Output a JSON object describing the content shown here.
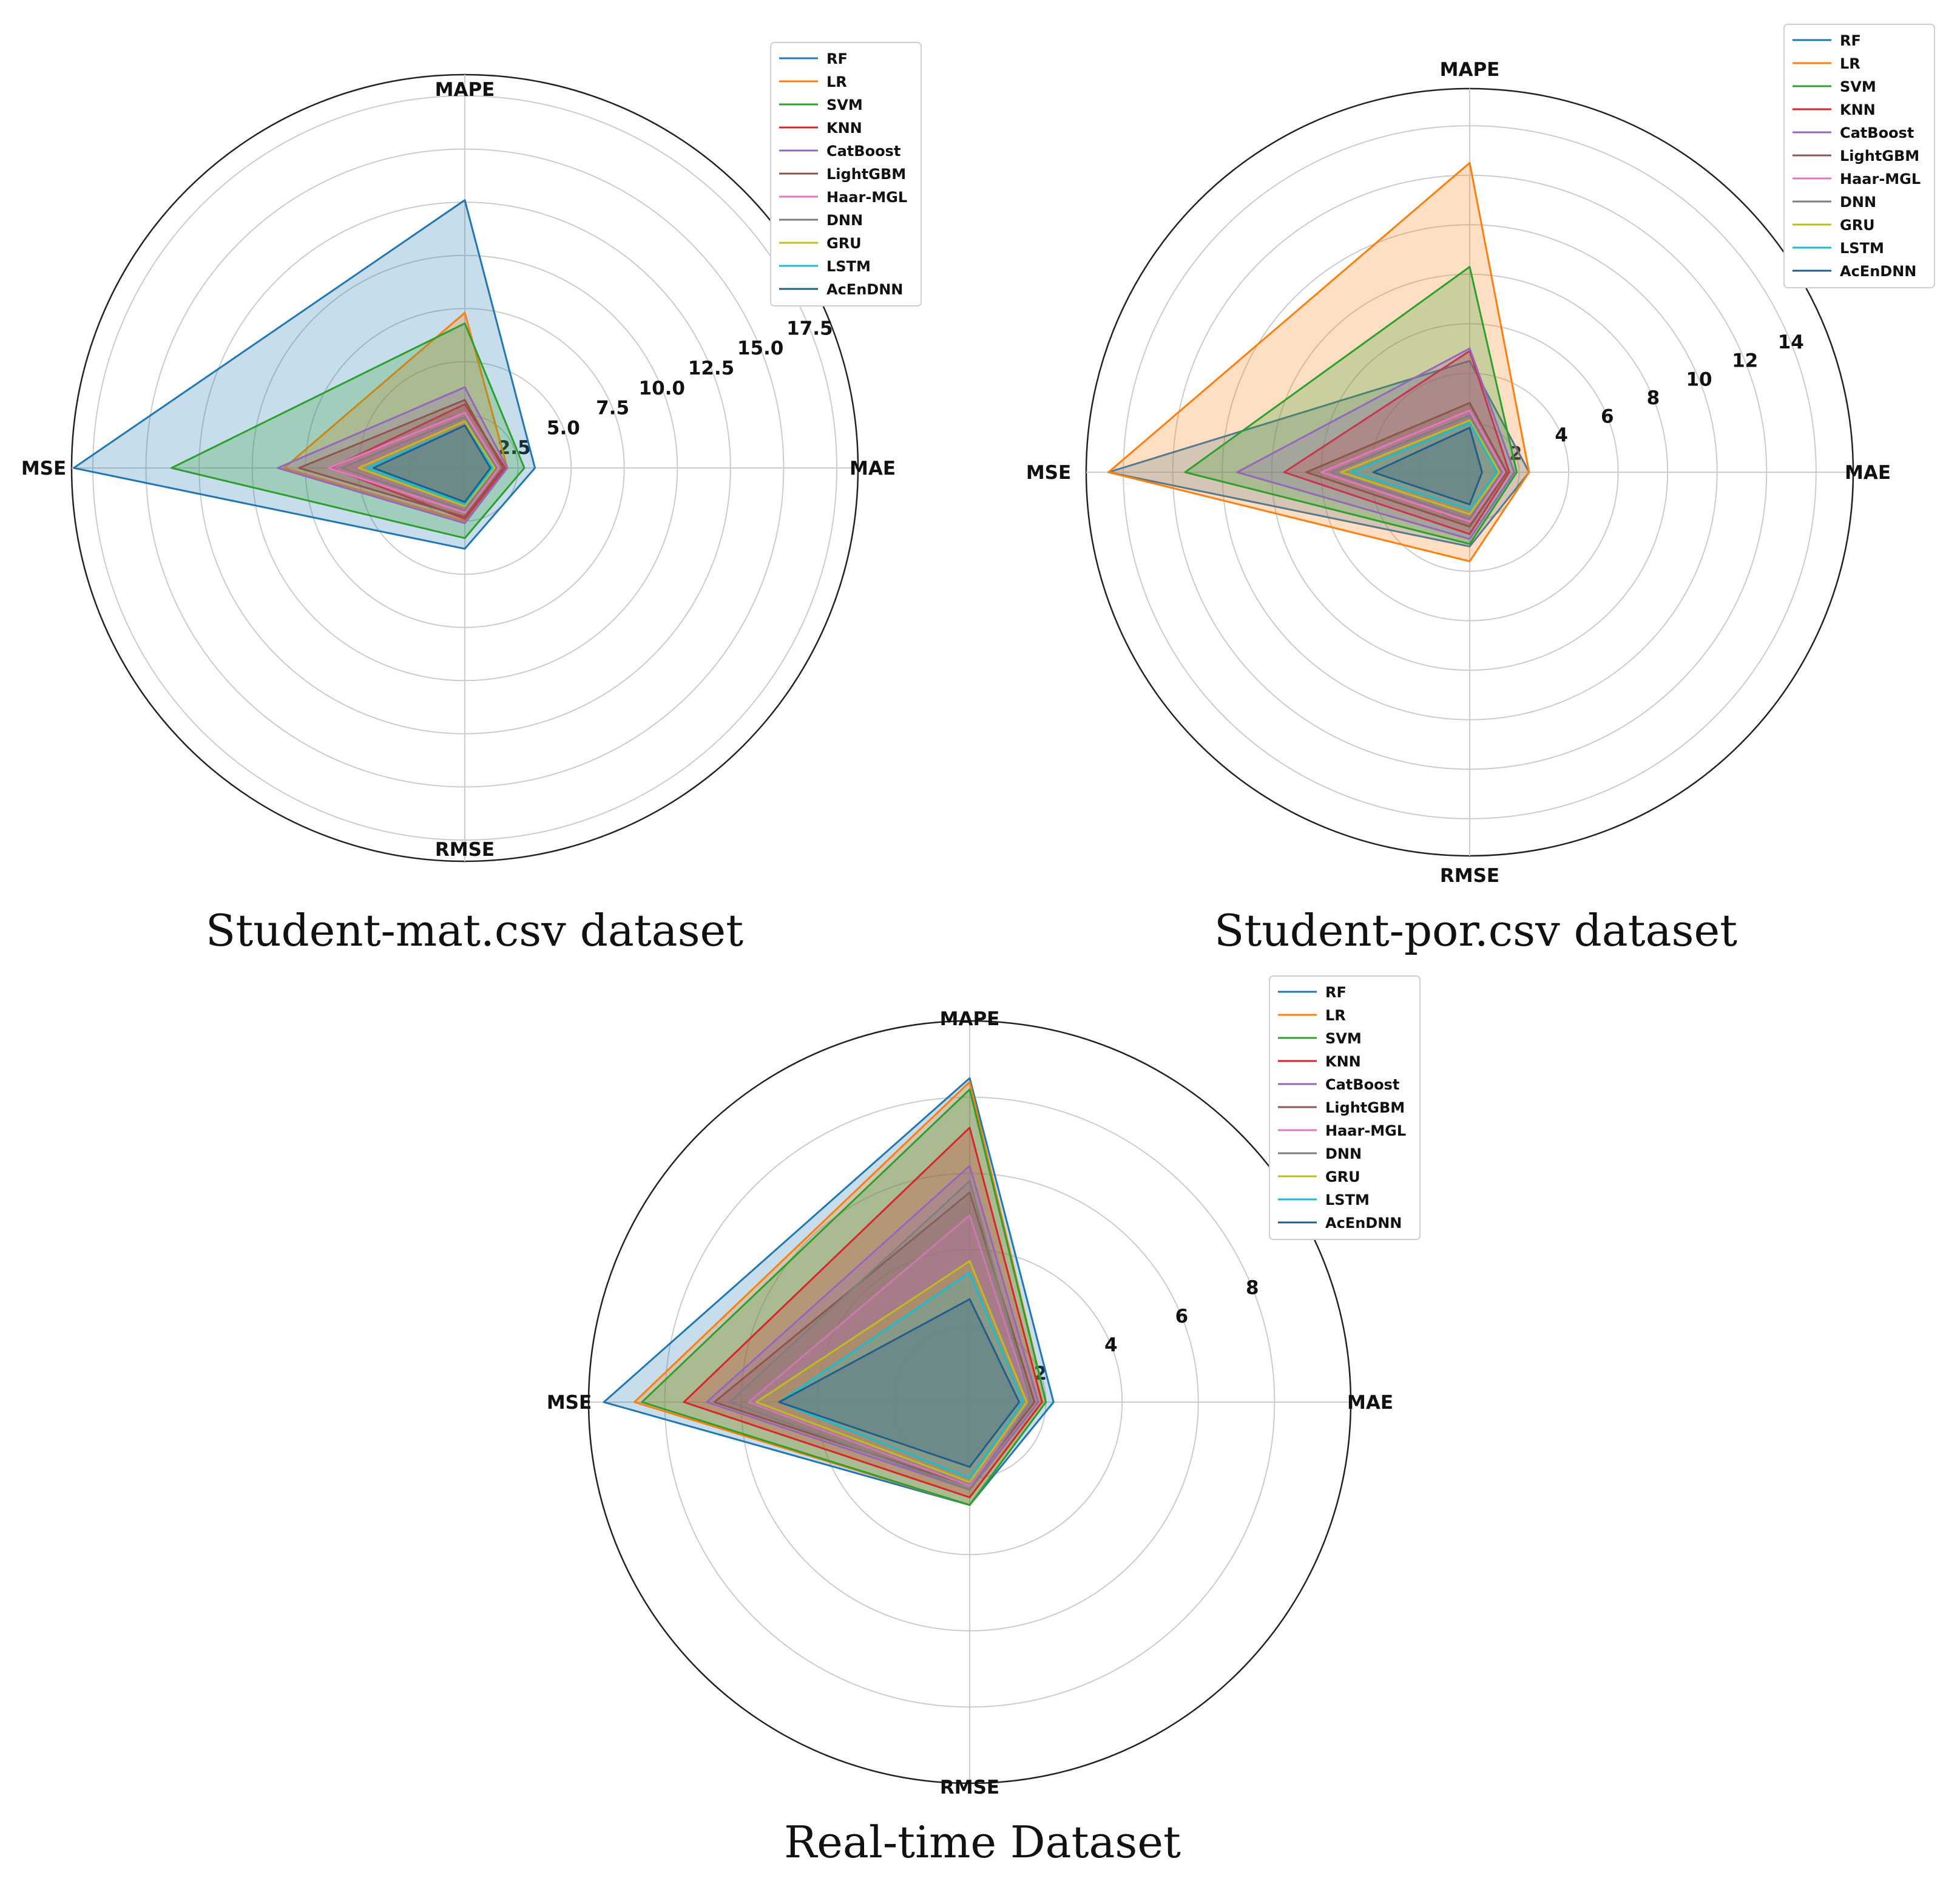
{
  "colors": {
    "RF": "#1f77b4",
    "LR": "#ff7f0e",
    "SVM": "#2ca02c",
    "KNN": "#d62728",
    "CatBoost": "#9467bd",
    "LightGBM": "#8c564b",
    "Haar-MGL": "#e377c2",
    "DNN": "#7f7f7f",
    "GRU": "#bcbd22",
    "LSTM": "#17becf",
    "AcEnDNN": "#1f5f8b"
  },
  "chart_data": [
    {
      "type": "radar",
      "title": "Student-mat.csv dataset",
      "axes": [
        "MAE",
        "MAPE",
        "MSE",
        "RMSE"
      ],
      "rmax": 18.5,
      "ticks": [
        2.5,
        5.0,
        7.5,
        10.0,
        12.5,
        15.0,
        17.5
      ],
      "tick_labels": [
        "2.5",
        "5.0",
        "7.5",
        "10.0",
        "12.5",
        "15.0",
        "17.5"
      ],
      "legend": [
        "RF",
        "LR",
        "SVM",
        "KNN",
        "CatBoost",
        "LightGBM",
        "Haar-MGL",
        "DNN",
        "GRU",
        "LSTM",
        "AcEnDNN"
      ],
      "series": [
        {
          "name": "RF",
          "values": [
            3.3,
            12.6,
            18.4,
            3.8
          ]
        },
        {
          "name": "LR",
          "values": [
            2.0,
            7.3,
            8.5,
            2.5
          ]
        },
        {
          "name": "SVM",
          "values": [
            2.8,
            6.8,
            13.8,
            3.3
          ]
        },
        {
          "name": "KNN",
          "values": [
            1.9,
            3.0,
            6.3,
            2.4
          ]
        },
        {
          "name": "CatBoost",
          "values": [
            2.0,
            3.8,
            8.8,
            2.6
          ]
        },
        {
          "name": "LightGBM",
          "values": [
            1.8,
            3.2,
            7.8,
            2.3
          ]
        },
        {
          "name": "Haar-MGL",
          "values": [
            1.6,
            2.6,
            6.4,
            2.1
          ]
        },
        {
          "name": "DNN",
          "values": [
            1.5,
            2.4,
            5.8,
            2.0
          ]
        },
        {
          "name": "GRU",
          "values": [
            1.4,
            2.2,
            5.0,
            1.8
          ]
        },
        {
          "name": "LSTM",
          "values": [
            1.3,
            2.0,
            4.6,
            1.7
          ]
        },
        {
          "name": "AcEnDNN",
          "values": [
            1.2,
            2.0,
            4.3,
            1.6
          ]
        }
      ]
    },
    {
      "type": "radar",
      "title": "Student-por.csv dataset",
      "axes": [
        "MAE",
        "MAPE",
        "MSE",
        "RMSE"
      ],
      "rmax": 15.5,
      "ticks": [
        2,
        4,
        6,
        8,
        10,
        12,
        14
      ],
      "tick_labels": [
        "2",
        "4",
        "6",
        "8",
        "10",
        "12",
        "14"
      ],
      "legend": [
        "RF",
        "LR",
        "SVM",
        "KNN",
        "CatBoost",
        "LightGBM",
        "Haar-MGL",
        "DNN",
        "GRU",
        "LSTM",
        "AcEnDNN"
      ],
      "series": [
        {
          "name": "RF",
          "values": [
            2.4,
            4.5,
            14.6,
            3.0
          ]
        },
        {
          "name": "LR",
          "values": [
            2.4,
            12.5,
            14.6,
            3.6
          ]
        },
        {
          "name": "SVM",
          "values": [
            1.9,
            8.3,
            11.5,
            2.9
          ]
        },
        {
          "name": "KNN",
          "values": [
            1.6,
            4.9,
            7.5,
            2.5
          ]
        },
        {
          "name": "CatBoost",
          "values": [
            1.8,
            5.0,
            9.4,
            2.7
          ]
        },
        {
          "name": "LightGBM",
          "values": [
            1.5,
            2.8,
            6.6,
            2.2
          ]
        },
        {
          "name": "Haar-MGL",
          "values": [
            1.4,
            2.5,
            6.0,
            2.0
          ]
        },
        {
          "name": "DNN",
          "values": [
            1.3,
            2.3,
            5.6,
            1.9
          ]
        },
        {
          "name": "GRU",
          "values": [
            1.2,
            2.1,
            5.2,
            1.7
          ]
        },
        {
          "name": "LSTM",
          "values": [
            1.1,
            2.0,
            4.8,
            1.5
          ]
        },
        {
          "name": "AcEnDNN",
          "values": [
            0.5,
            1.8,
            3.9,
            1.3
          ]
        }
      ]
    },
    {
      "type": "radar",
      "title": "Real-time Dataset",
      "axes": [
        "MAE",
        "MAPE",
        "MSE",
        "RMSE"
      ],
      "rmax": 10.0,
      "ticks": [
        2,
        4,
        6,
        8
      ],
      "tick_labels": [
        "2",
        "4",
        "6",
        "8"
      ],
      "legend": [
        "RF",
        "LR",
        "SVM",
        "KNN",
        "CatBoost",
        "LightGBM",
        "Haar-MGL",
        "DNN",
        "GRU",
        "LSTM",
        "AcEnDNN"
      ],
      "series": [
        {
          "name": "RF",
          "values": [
            2.2,
            8.5,
            9.6,
            2.7
          ]
        },
        {
          "name": "LR",
          "values": [
            2.0,
            8.4,
            8.8,
            2.7
          ]
        },
        {
          "name": "SVM",
          "values": [
            2.0,
            8.2,
            8.6,
            2.7
          ]
        },
        {
          "name": "KNN",
          "values": [
            1.9,
            7.2,
            7.5,
            2.5
          ]
        },
        {
          "name": "CatBoost",
          "values": [
            1.8,
            6.2,
            6.9,
            2.3
          ]
        },
        {
          "name": "LightGBM",
          "values": [
            1.7,
            5.5,
            6.7,
            2.2
          ]
        },
        {
          "name": "Haar-MGL",
          "values": [
            1.6,
            4.9,
            5.8,
            2.2
          ]
        },
        {
          "name": "DNN",
          "values": [
            1.6,
            5.8,
            6.3,
            2.3
          ]
        },
        {
          "name": "GRU",
          "values": [
            1.5,
            3.7,
            5.6,
            2.1
          ]
        },
        {
          "name": "LSTM",
          "values": [
            1.4,
            3.4,
            5.0,
            2.0
          ]
        },
        {
          "name": "AcEnDNN",
          "values": [
            1.3,
            2.7,
            5.0,
            1.7
          ]
        }
      ]
    }
  ]
}
